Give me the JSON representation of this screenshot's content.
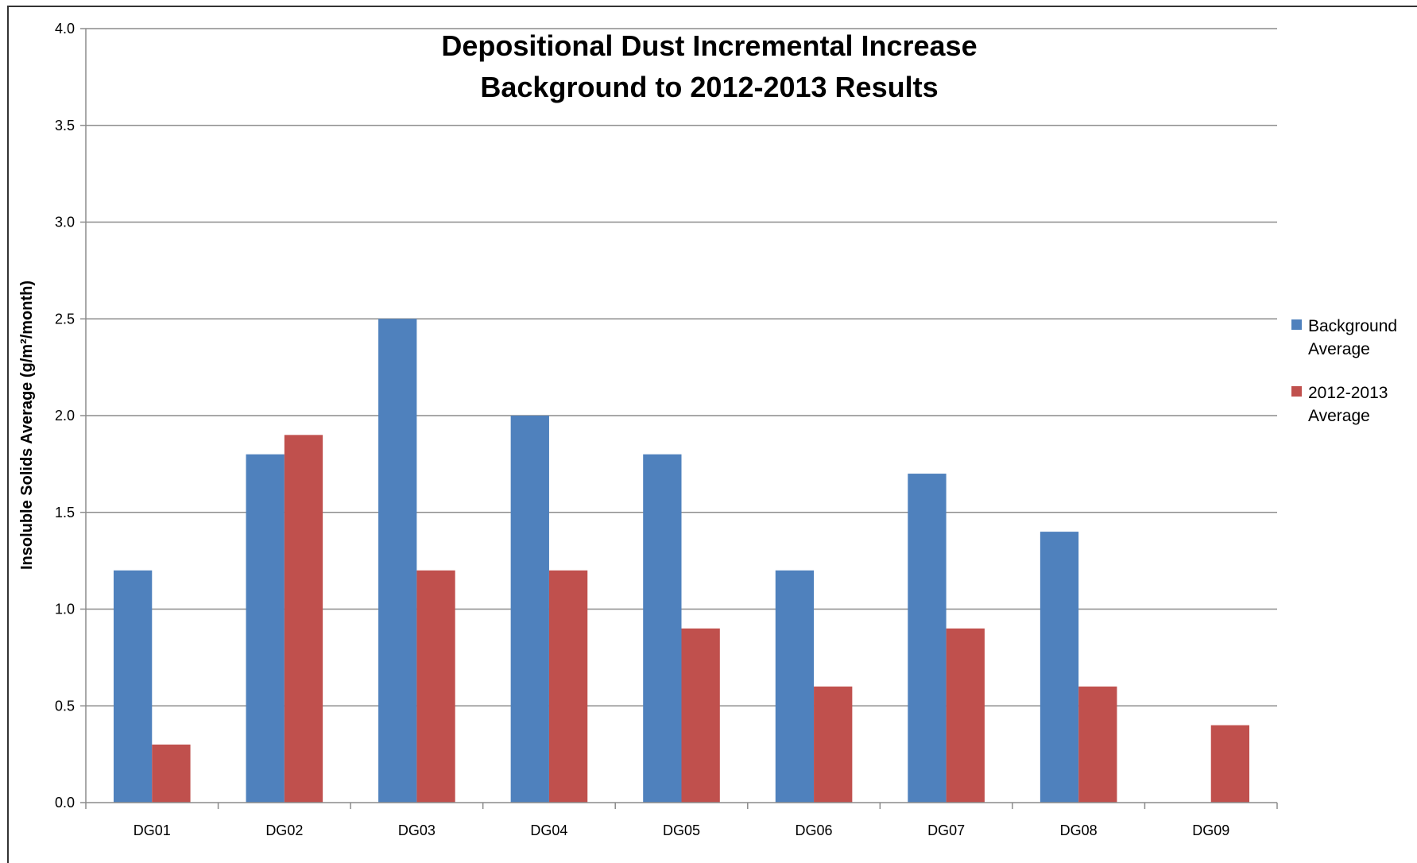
{
  "chart_data": {
    "type": "bar",
    "title": "Depositional Dust Incremental Increase\nBackground to 2012-2013 Results",
    "xlabel": "",
    "ylabel": "Insoluble Solids Average (g/m²/month)",
    "ylim": [
      0,
      4
    ],
    "yticks": [
      "0.0",
      "0.5",
      "1.0",
      "1.5",
      "2.0",
      "2.5",
      "3.0",
      "3.5",
      "4.0"
    ],
    "categories": [
      "DG01",
      "DG02",
      "DG03",
      "DG04",
      "DG05",
      "DG06",
      "DG07",
      "DG08",
      "DG09"
    ],
    "series": [
      {
        "name": "Background Average",
        "color": "#4f81bd",
        "values": [
          1.2,
          1.8,
          2.5,
          2.0,
          1.8,
          1.2,
          1.7,
          1.4,
          0
        ]
      },
      {
        "name": "2012-2013 Average",
        "color": "#c0504d",
        "values": [
          0.3,
          1.9,
          1.2,
          1.2,
          0.9,
          0.6,
          0.9,
          0.6,
          0.4
        ]
      }
    ],
    "legend": {
      "placement": "right",
      "entries": [
        {
          "line1": "Background",
          "line2": "Average"
        },
        {
          "line1": "2012-2013",
          "line2": "Average"
        }
      ]
    },
    "grid": true
  }
}
